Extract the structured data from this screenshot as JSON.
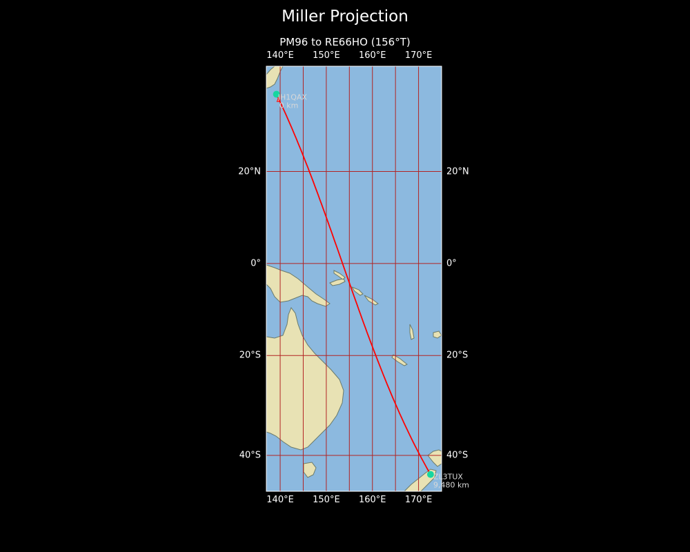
{
  "figure": {
    "title": "Miller Projection",
    "subtitle": "PM96 to RE66HO (156°T)"
  },
  "map": {
    "projection": "miller",
    "lon_range": [
      137,
      175
    ],
    "lat_range": [
      -46.5,
      41
    ],
    "lon_ticks": [
      {
        "value": 140,
        "label": "140°E"
      },
      {
        "value": 150,
        "label": "150°E"
      },
      {
        "value": 160,
        "label": "160°E"
      },
      {
        "value": 170,
        "label": "170°E"
      }
    ],
    "lat_ticks": [
      {
        "value": 20,
        "label": "20°N"
      },
      {
        "value": 0,
        "label": "0°"
      },
      {
        "value": -20,
        "label": "20°S"
      },
      {
        "value": -40,
        "label": "40°S"
      }
    ],
    "colors": {
      "ocean": "#8cb9df",
      "land": "#e8e2b4",
      "grid": "#b22222",
      "route": "#ff0000",
      "station": "#17d6a0",
      "station_label": "#d8d8d8",
      "coast": "#6a7a6a"
    },
    "stations": [
      {
        "call": "JH1QAX",
        "distance": "0 km",
        "lat": 35.7,
        "lon": 139.2,
        "label_side": "below-right"
      },
      {
        "call": "ZL3TUX",
        "distance": "9,480 km",
        "lat": -43.5,
        "lon": 172.6,
        "label_side": "right"
      }
    ],
    "route": {
      "bearing": "156°T",
      "from": {
        "lat": 35.7,
        "lon": 139.2
      },
      "to": {
        "lat": -43.5,
        "lon": 172.6
      }
    }
  }
}
